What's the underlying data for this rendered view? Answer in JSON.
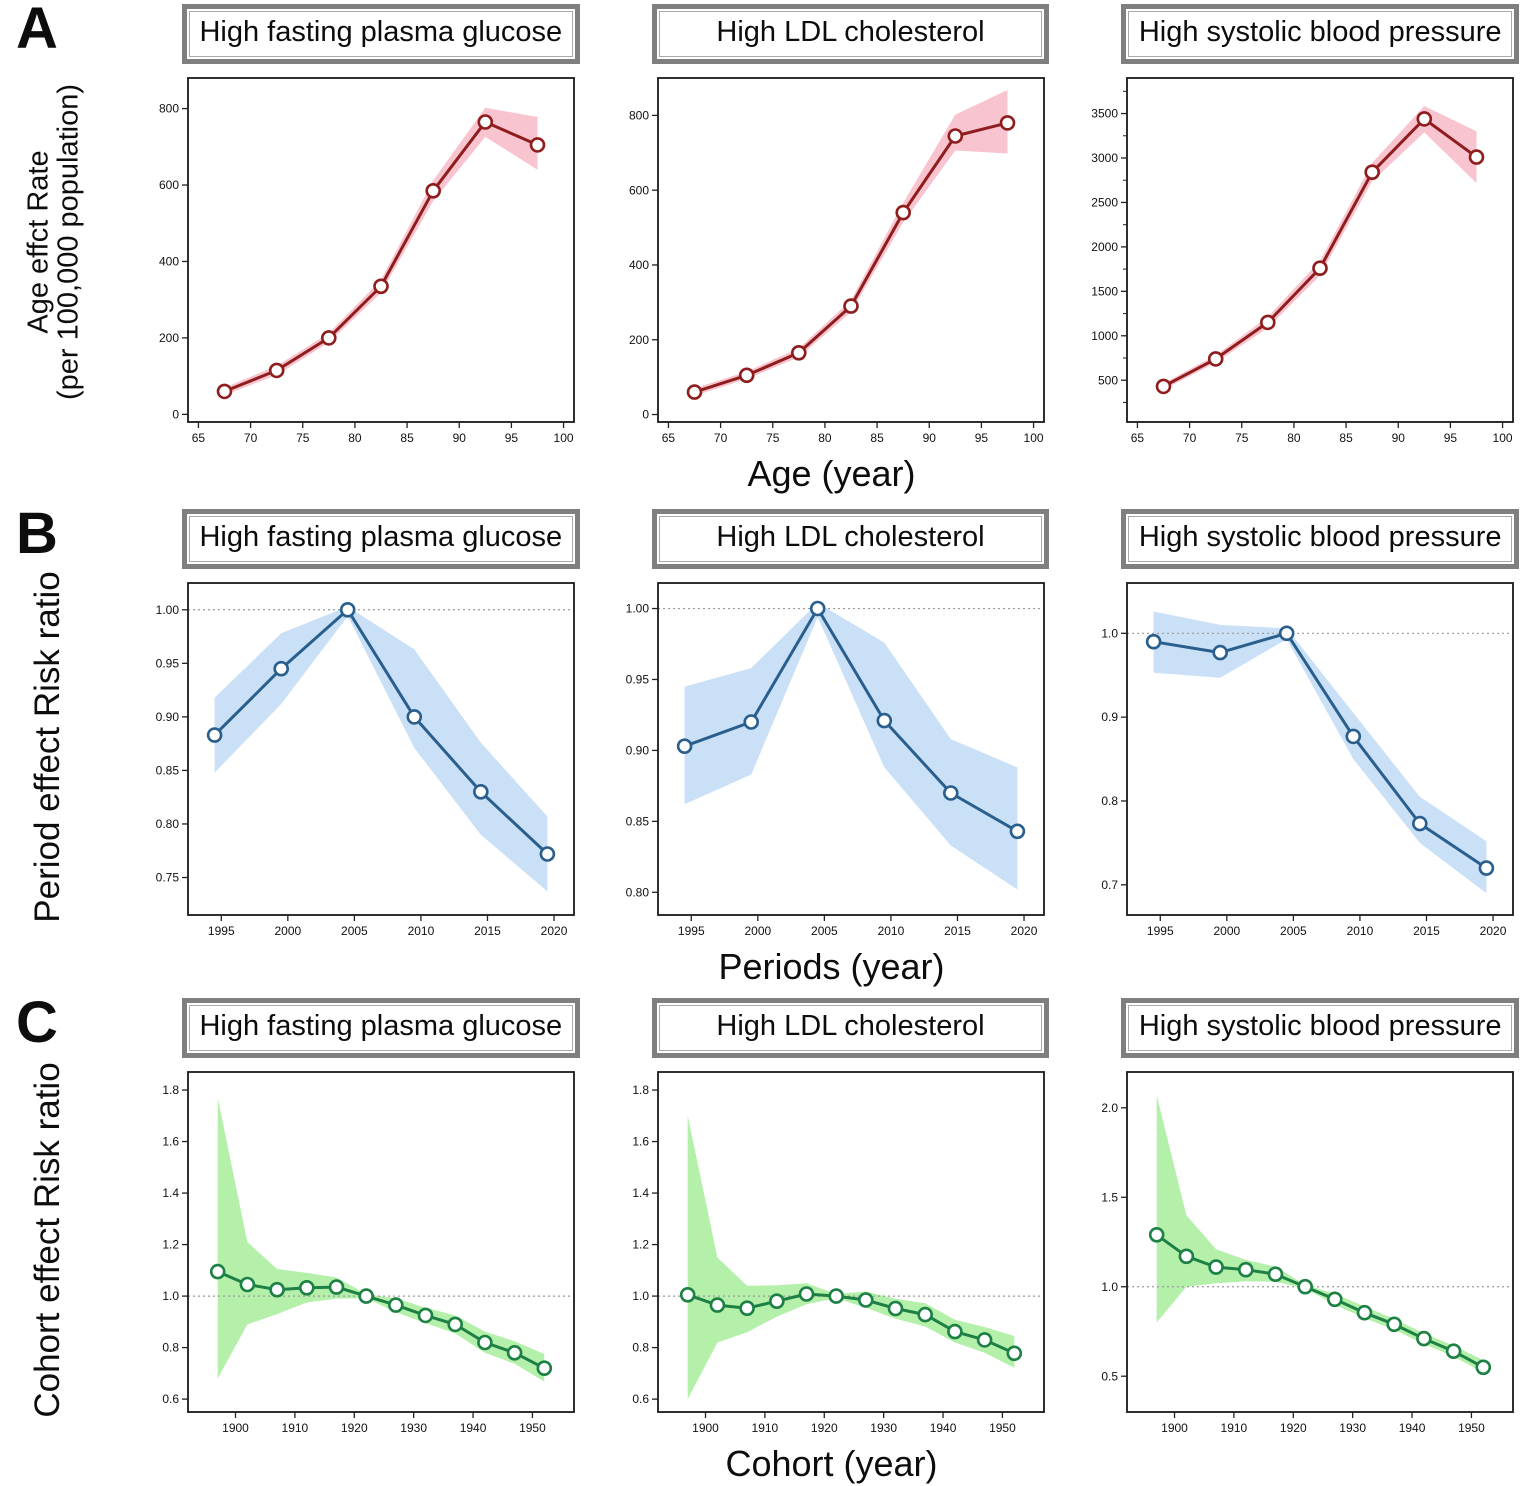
{
  "figure": {
    "rows": [
      {
        "letter": "A",
        "ylabel_lines": [
          "Age effct Rate",
          "(per 100,000 population)"
        ],
        "xlabel": "Age (year)"
      },
      {
        "letter": "B",
        "ylabel_lines": [
          "Period effect Risk ratio"
        ],
        "xlabel": "Periods (year)"
      },
      {
        "letter": "C",
        "ylabel_lines": [
          "Cohort effect Risk ratio"
        ],
        "xlabel": "Cohort (year)"
      }
    ]
  },
  "colors": {
    "row_a_line": "#8f1d1d",
    "row_a_band": "#f8c4cf",
    "row_b_line": "#2a5f8d",
    "row_b_band": "#c9e0f7",
    "row_c_line": "#1d8044",
    "row_c_band": "#b4f0aa",
    "reference_line": "#999999",
    "plot_border": "#1a1a1a",
    "header_border": "#7f7f7f"
  },
  "chart_data": [
    {
      "type": "line",
      "panel": "A-0",
      "row": "A",
      "title": "High fasting plasma glucose",
      "x": [
        67.5,
        72.5,
        77.5,
        82.5,
        87.5,
        92.5,
        97.5
      ],
      "y": [
        60,
        115,
        200,
        335,
        585,
        765,
        705
      ],
      "lower": [
        50,
        103,
        188,
        318,
        558,
        726,
        640
      ],
      "upper": [
        70,
        127,
        212,
        352,
        612,
        802,
        778
      ],
      "xlim": [
        64,
        101
      ],
      "ylim": [
        -20,
        880
      ],
      "xticks": [
        65,
        70,
        75,
        80,
        85,
        90,
        95,
        100
      ],
      "yticks": [
        0,
        200,
        400,
        600,
        800
      ],
      "yticks_minor": [],
      "ytick_decimals": 0,
      "ref_line": null,
      "line_color": "#8f1d1d",
      "band_color": "#f8c4cf",
      "marker_fill": "#ffffff"
    },
    {
      "type": "line",
      "panel": "A-1",
      "row": "A",
      "title": "High LDL cholesterol",
      "x": [
        67.5,
        72.5,
        77.5,
        82.5,
        87.5,
        92.5,
        97.5
      ],
      "y": [
        60,
        105,
        165,
        290,
        540,
        745,
        780
      ],
      "lower": [
        50,
        95,
        153,
        274,
        514,
        706,
        698
      ],
      "upper": [
        70,
        115,
        177,
        306,
        566,
        802,
        868
      ],
      "xlim": [
        64,
        101
      ],
      "ylim": [
        -20,
        900
      ],
      "xticks": [
        65,
        70,
        75,
        80,
        85,
        90,
        95,
        100
      ],
      "yticks": [
        0,
        200,
        400,
        600,
        800
      ],
      "yticks_minor": [],
      "ytick_decimals": 0,
      "ref_line": null,
      "line_color": "#8f1d1d",
      "band_color": "#f8c4cf",
      "marker_fill": "#ffffff"
    },
    {
      "type": "line",
      "panel": "A-2",
      "row": "A",
      "title": "High systolic blood pressure",
      "x": [
        67.5,
        72.5,
        77.5,
        82.5,
        87.5,
        92.5,
        97.5
      ],
      "y": [
        430,
        740,
        1150,
        1760,
        2840,
        3440,
        3010
      ],
      "lower": [
        395,
        698,
        1088,
        1678,
        2738,
        3288,
        2718
      ],
      "upper": [
        465,
        782,
        1212,
        1842,
        2945,
        3585,
        3300
      ],
      "xlim": [
        64,
        101
      ],
      "ylim": [
        30,
        3900
      ],
      "xticks": [
        65,
        70,
        75,
        80,
        85,
        90,
        95,
        100
      ],
      "yticks": [
        500,
        1000,
        1500,
        2000,
        2500,
        3000,
        3500
      ],
      "yticks_minor": [
        250,
        750,
        1250,
        1750,
        2250,
        2750,
        3250,
        3750
      ],
      "ytick_decimals": 0,
      "ref_line": null,
      "line_color": "#8f1d1d",
      "band_color": "#f8c4cf",
      "marker_fill": "#ffffff"
    },
    {
      "type": "line",
      "panel": "B-0",
      "row": "B",
      "title": "High fasting plasma glucose",
      "x": [
        1994.5,
        1999.5,
        2004.5,
        2009.5,
        2014.5,
        2019.5
      ],
      "y": [
        0.883,
        0.945,
        1.0,
        0.9,
        0.83,
        0.772
      ],
      "lower": [
        0.848,
        0.912,
        0.994,
        0.871,
        0.79,
        0.737
      ],
      "upper": [
        0.918,
        0.978,
        1.003,
        0.963,
        0.876,
        0.807
      ],
      "xlim": [
        1992.5,
        2021.5
      ],
      "ylim": [
        0.715,
        1.025
      ],
      "xticks": [
        1995,
        2000,
        2005,
        2010,
        2015,
        2020
      ],
      "yticks": [
        0.75,
        0.8,
        0.85,
        0.9,
        0.95,
        1.0
      ],
      "yticks_minor": [],
      "ytick_decimals": 2,
      "ref_line": 1.0,
      "line_color": "#2a5f8d",
      "band_color": "#c9e0f7",
      "marker_fill": "#ffffff"
    },
    {
      "type": "line",
      "panel": "B-1",
      "row": "B",
      "title": "High LDL cholesterol",
      "x": [
        1994.5,
        1999.5,
        2004.5,
        2009.5,
        2014.5,
        2019.5
      ],
      "y": [
        0.903,
        0.92,
        1.0,
        0.921,
        0.87,
        0.843
      ],
      "lower": [
        0.862,
        0.883,
        0.994,
        0.888,
        0.833,
        0.802
      ],
      "upper": [
        0.945,
        0.958,
        1.004,
        0.976,
        0.908,
        0.888
      ],
      "xlim": [
        1992.5,
        2021.5
      ],
      "ylim": [
        0.784,
        1.018
      ],
      "xticks": [
        1995,
        2000,
        2005,
        2010,
        2015,
        2020
      ],
      "yticks": [
        0.8,
        0.85,
        0.9,
        0.95,
        1.0
      ],
      "yticks_minor": [],
      "ytick_decimals": 2,
      "ref_line": 1.0,
      "line_color": "#2a5f8d",
      "band_color": "#c9e0f7",
      "marker_fill": "#ffffff"
    },
    {
      "type": "line",
      "panel": "B-2",
      "row": "B",
      "title": "High systolic blood pressure",
      "x": [
        1994.5,
        1999.5,
        2004.5,
        2009.5,
        2014.5,
        2019.5
      ],
      "y": [
        0.99,
        0.977,
        1.0,
        0.877,
        0.773,
        0.72
      ],
      "lower": [
        0.953,
        0.947,
        0.993,
        0.85,
        0.75,
        0.69
      ],
      "upper": [
        1.026,
        1.01,
        1.006,
        0.905,
        0.805,
        0.752
      ],
      "xlim": [
        1992.5,
        2021.5
      ],
      "ylim": [
        0.664,
        1.06
      ],
      "xticks": [
        1995,
        2000,
        2005,
        2010,
        2015,
        2020
      ],
      "yticks": [
        0.7,
        0.8,
        0.9,
        1.0
      ],
      "yticks_minor": [],
      "ytick_decimals": 1,
      "ref_line": 1.0,
      "line_color": "#2a5f8d",
      "band_color": "#c9e0f7",
      "marker_fill": "#ffffff"
    },
    {
      "type": "line",
      "panel": "C-0",
      "row": "C",
      "title": "High fasting plasma glucose",
      "x": [
        1897,
        1902,
        1907,
        1912,
        1917,
        1922,
        1927,
        1932,
        1937,
        1942,
        1947,
        1952
      ],
      "y": [
        1.095,
        1.045,
        1.025,
        1.032,
        1.035,
        1.0,
        0.965,
        0.925,
        0.89,
        0.82,
        0.78,
        0.72
      ],
      "lower": [
        0.68,
        0.89,
        0.93,
        0.975,
        0.99,
        0.992,
        0.938,
        0.895,
        0.855,
        0.78,
        0.738,
        0.668
      ],
      "upper": [
        1.77,
        1.21,
        1.105,
        1.09,
        1.072,
        1.008,
        0.992,
        0.955,
        0.925,
        0.862,
        0.825,
        0.775
      ],
      "xlim": [
        1892,
        1957
      ],
      "ylim": [
        0.55,
        1.87
      ],
      "xticks": [
        1900,
        1910,
        1920,
        1930,
        1940,
        1950
      ],
      "yticks": [
        0.6,
        0.8,
        1.0,
        1.2,
        1.4,
        1.6,
        1.8
      ],
      "yticks_minor": [],
      "ytick_decimals": 1,
      "ref_line": 1.0,
      "line_color": "#1d8044",
      "band_color": "#b4f0aa",
      "marker_fill": "#ffffff"
    },
    {
      "type": "line",
      "panel": "C-1",
      "row": "C",
      "title": "High LDL cholesterol",
      "x": [
        1897,
        1902,
        1907,
        1912,
        1917,
        1922,
        1927,
        1932,
        1937,
        1942,
        1947,
        1952
      ],
      "y": [
        1.005,
        0.965,
        0.953,
        0.98,
        1.008,
        1.0,
        0.985,
        0.952,
        0.928,
        0.862,
        0.83,
        0.778
      ],
      "lower": [
        0.6,
        0.82,
        0.86,
        0.92,
        0.968,
        0.992,
        0.955,
        0.912,
        0.882,
        0.82,
        0.78,
        0.722
      ],
      "upper": [
        1.7,
        1.15,
        1.04,
        1.042,
        1.05,
        1.008,
        1.018,
        0.99,
        0.972,
        0.908,
        0.88,
        0.845
      ],
      "xlim": [
        1892,
        1957
      ],
      "ylim": [
        0.55,
        1.87
      ],
      "xticks": [
        1900,
        1910,
        1920,
        1930,
        1940,
        1950
      ],
      "yticks": [
        0.6,
        0.8,
        1.0,
        1.2,
        1.4,
        1.6,
        1.8
      ],
      "yticks_minor": [],
      "ytick_decimals": 1,
      "ref_line": 1.0,
      "line_color": "#1d8044",
      "band_color": "#b4f0aa",
      "marker_fill": "#ffffff"
    },
    {
      "type": "line",
      "panel": "C-2",
      "row": "C",
      "title": "High systolic blood pressure",
      "x": [
        1897,
        1902,
        1907,
        1912,
        1917,
        1922,
        1927,
        1932,
        1937,
        1942,
        1947,
        1952
      ],
      "y": [
        1.29,
        1.17,
        1.11,
        1.095,
        1.07,
        1.0,
        0.93,
        0.855,
        0.79,
        0.71,
        0.64,
        0.55
      ],
      "lower": [
        0.8,
        1.0,
        1.02,
        1.03,
        1.028,
        0.99,
        0.9,
        0.825,
        0.76,
        0.68,
        0.61,
        0.52
      ],
      "upper": [
        2.07,
        1.4,
        1.21,
        1.15,
        1.112,
        1.01,
        0.96,
        0.89,
        0.82,
        0.74,
        0.67,
        0.59
      ],
      "xlim": [
        1892,
        1957
      ],
      "ylim": [
        0.3,
        2.2
      ],
      "xticks": [
        1900,
        1910,
        1920,
        1930,
        1940,
        1950
      ],
      "yticks": [
        0.5,
        1.0,
        1.5,
        2.0
      ],
      "yticks_minor": [],
      "ytick_decimals": 1,
      "ref_line": 1.0,
      "line_color": "#1d8044",
      "band_color": "#b4f0aa",
      "marker_fill": "#ffffff"
    }
  ]
}
